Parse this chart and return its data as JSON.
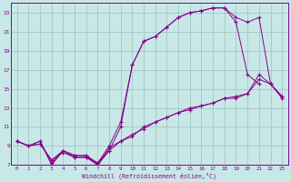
{
  "xlabel": "Windchill (Refroidissement éolien,°C)",
  "bg_color": "#c8e8e8",
  "line_color": "#880088",
  "grid_color": "#9fbfbf",
  "xlim": [
    -0.5,
    23.5
  ],
  "ylim": [
    7,
    24
  ],
  "xticks": [
    0,
    1,
    2,
    3,
    4,
    5,
    6,
    7,
    8,
    9,
    10,
    11,
    12,
    13,
    14,
    15,
    16,
    17,
    18,
    19,
    20,
    21,
    22,
    23
  ],
  "yticks": [
    7,
    9,
    11,
    13,
    15,
    17,
    19,
    21,
    23
  ],
  "line1_x": [
    0,
    1,
    2,
    3,
    4,
    5,
    6,
    7,
    8,
    9,
    10,
    11,
    12,
    13,
    14,
    15,
    16,
    17,
    18,
    19,
    20,
    21
  ],
  "line1_y": [
    9.5,
    9.0,
    9.5,
    7.0,
    8.5,
    8.0,
    8.0,
    7.0,
    8.5,
    11.0,
    17.5,
    20.0,
    20.5,
    21.5,
    22.5,
    23.0,
    23.2,
    23.5,
    23.5,
    22.0,
    16.5,
    15.5
  ],
  "line2_x": [
    0,
    1,
    2,
    3,
    4,
    5,
    6,
    7,
    8,
    9,
    10,
    11,
    12,
    13,
    14,
    15,
    16,
    17,
    18,
    19,
    20,
    21,
    22,
    23
  ],
  "line2_y": [
    9.5,
    9.0,
    9.5,
    7.2,
    8.5,
    8.0,
    8.0,
    7.2,
    9.0,
    11.5,
    17.5,
    20.0,
    20.5,
    21.5,
    22.5,
    23.0,
    23.2,
    23.5,
    23.5,
    22.5,
    22.0,
    22.5,
    15.5,
    14.0
  ],
  "line3_x": [
    0,
    1,
    2,
    3,
    4,
    5,
    6,
    7,
    8,
    9,
    10,
    11,
    12,
    13,
    14,
    15,
    16,
    17,
    18,
    19,
    20,
    21,
    22,
    23
  ],
  "line3_y": [
    9.5,
    9.0,
    9.2,
    7.5,
    8.5,
    7.8,
    7.8,
    7.2,
    8.5,
    9.5,
    10.0,
    11.0,
    11.5,
    12.0,
    12.5,
    13.0,
    13.2,
    13.5,
    14.0,
    14.2,
    14.5,
    16.5,
    15.5,
    14.2
  ],
  "line4_x": [
    0,
    1,
    2,
    3,
    4,
    5,
    6,
    7,
    8,
    9,
    10,
    11,
    12,
    13,
    14,
    15,
    16,
    17,
    18,
    19,
    20,
    21,
    22,
    23
  ],
  "line4_y": [
    9.5,
    9.0,
    9.2,
    7.5,
    8.3,
    7.8,
    7.8,
    7.0,
    8.8,
    9.5,
    10.2,
    10.8,
    11.5,
    12.0,
    12.5,
    12.8,
    13.2,
    13.5,
    14.0,
    14.0,
    14.5,
    16.0,
    15.5,
    14.2
  ]
}
